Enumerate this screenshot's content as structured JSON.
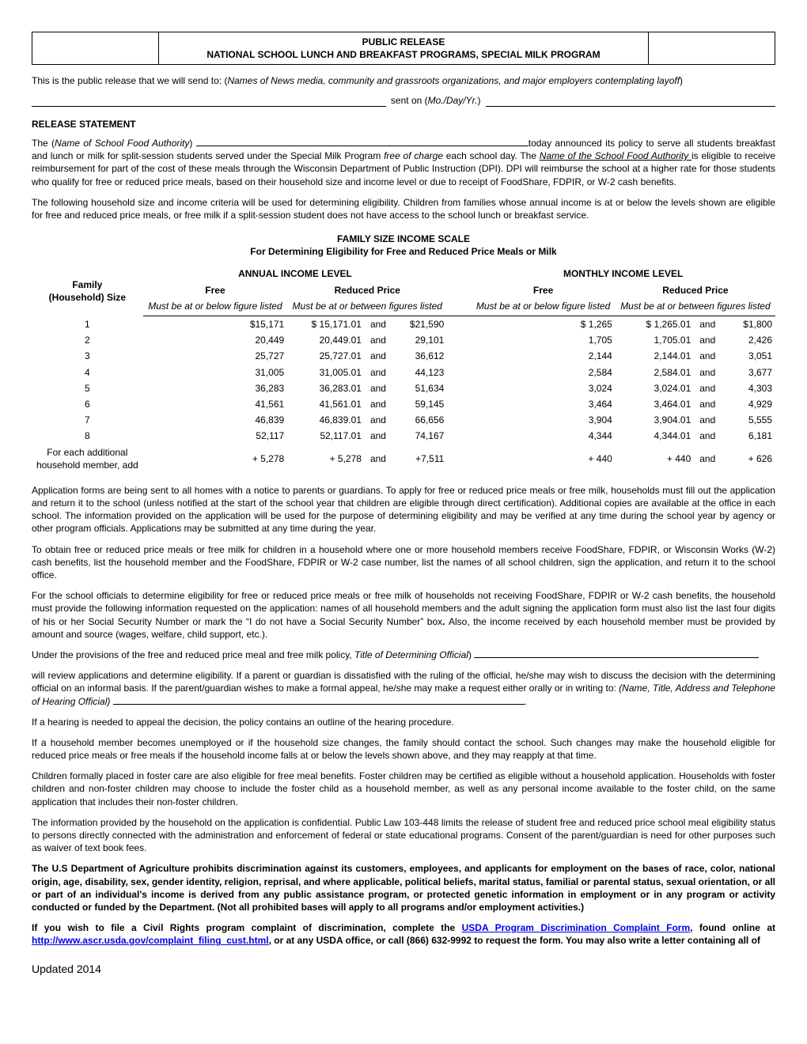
{
  "header": {
    "line1": "PUBLIC RELEASE",
    "line2": "NATIONAL SCHOOL LUNCH AND BREAKFAST PROGRAMS, SPECIAL MILK PROGRAM"
  },
  "intro": {
    "lead": "This is the public release that we will send to: (",
    "italic": "Names of News media, community and grassroots organizations, and major employers contemplating layoff",
    "tail": ")"
  },
  "sent": {
    "label_pre": " sent on (",
    "label_italic": "Mo./Day/Yr.",
    "label_post": ") "
  },
  "release_heading": "RELEASE STATEMENT",
  "para1": {
    "a": "The (",
    "b_italic": "Name of School Food Authority",
    "c": ") ",
    "d": "today announced its policy to serve all students breakfast and lunch or milk for split-session students served under the Special Milk Program ",
    "e_italic": "free of charge",
    "f": " each school day. The ",
    "g_under_italic": "Name of the School Food Authority ",
    "h": "is eligible to receive reimbursement for part of the cost of these meals through the Wisconsin Department of Public Instruction (DPI). DPI will reimburse the school at a higher rate for those students who qualify for free or reduced price meals, based on their household size and income level or due to receipt of FoodShare, FDPIR, or W-2 cash benefits."
  },
  "para2": "The following household size and income criteria will be used for determining eligibility. Children from families whose annual income is at or below the levels shown are eligible for free and reduced price meals, or free milk if a split-session student does not have access to the school lunch or breakfast service.",
  "table": {
    "title": "FAMILY SIZE INCOME SCALE",
    "subtitle": "For Determining Eligibility for Free and Reduced Price Meals or Milk",
    "annual": "ANNUAL INCOME LEVEL",
    "monthly": "MONTHLY INCOME LEVEL",
    "free": "Free",
    "reduced": "Reduced Price",
    "family_h1": "Family",
    "family_h2": "(Household) Size",
    "sub_free": "Must be at or below figure listed",
    "sub_reduced": "Must be at or between figures listed",
    "and": "and",
    "rows": [
      {
        "fs": "1",
        "af": "$15,171",
        "arl": "$ 15,171.01",
        "arr": "$21,590",
        "mf": "$ 1,265",
        "mrl": "$ 1,265.01",
        "mrr": "$1,800",
        "mrr_pre": "and"
      },
      {
        "fs": "2",
        "af": "20,449",
        "arl": "20,449.01",
        "arr": "29,101",
        "mf": "1,705",
        "mrl": "1,705.01",
        "mrr": "2,426",
        "mrr_pre": "and"
      },
      {
        "fs": "3",
        "af": "25,727",
        "arl": "25,727.01",
        "arr": "36,612",
        "mf": "2,144",
        "mrl": "2,144.01",
        "mrr": "3,051",
        "mrr_pre": "and"
      },
      {
        "fs": "4",
        "af": "31,005",
        "arl": "31,005.01",
        "arr": "44,123",
        "mf": "2,584",
        "mrl": "2,584.01",
        "mrr": "3,677",
        "mrr_pre": "and"
      },
      {
        "fs": "5",
        "af": "36,283",
        "arl": "36,283.01",
        "arr": "51,634",
        "mf": "3,024",
        "mrl": "3,024.01",
        "mrr": "4,303",
        "mrr_pre": "and"
      },
      {
        "fs": "6",
        "af": "41,561",
        "arl": "41,561.01",
        "arr": "59,145",
        "mf": "3,464",
        "mrl": "3,464.01",
        "mrr": "4,929",
        "mrr_pre": "and"
      },
      {
        "fs": "7",
        "af": "46,839",
        "arl": "46,839.01",
        "arr": "66,656",
        "mf": "3,904",
        "mrl": "3,904.01",
        "mrr": "5,555",
        "mrr_pre": "and"
      },
      {
        "fs": "8",
        "af": "52,117",
        "arl": "52,117.01",
        "arr": "74,167",
        "mf": "4,344",
        "mrl": "4,344.01",
        "mrr": "6,181",
        "mrr_pre": "and"
      }
    ],
    "addl": {
      "label1": "For each additional",
      "label2": "household member, add",
      "af": "+ 5,278",
      "arl": "+ 5,278",
      "arr": "+7,511",
      "mf": "+ 440",
      "mrl": "+ 440",
      "mrr": "+ 626"
    }
  },
  "para3": "Application forms are being sent to all homes with a notice to parents or guardians. To apply for free or reduced price meals or free milk, households must fill out the application and return it to the school (unless notified at the start of the school year that children are eligible through direct certification). Additional copies are available at the office in each school. The information provided on the application will be used for the purpose of determining eligibility and may be verified at any time during the school year by agency or other program officials. Applications may be submitted at any time during the year.",
  "para4": "To obtain free or reduced price meals or free milk for children in a household where one or more household members receive FoodShare, FDPIR, or Wisconsin Works (W-2) cash benefits, list the household member and the FoodShare, FDPIR or W-2 case number, list the names of all school children, sign  the application, and return it to the school office.",
  "para5": {
    "a": "For the school officials to determine eligibility for free or reduced price meals or free milk of households not receiving FoodShare, FDPIR or W-2 cash benefits, the household must provide the following information requested on the application: names of all household members and the adult signing the application form must also list the last four digits of his or her Social Security Number or mark the “I do not have a Social Security Number” box",
    "b_bold": ". ",
    "c": "Also, the income received by each household member must be provided by amount and source (wages, welfare, child support, etc.)."
  },
  "para6": {
    "a": "Under the provisions of the free and reduced price meal and free milk policy, ",
    "b_italic": "Title of Determining Official",
    "c": ") "
  },
  "para7": {
    "a": "will review applications and determine eligibility. If a parent or guardian is dissatisfied with the ruling of the official, he/she may wish to discuss the decision with the determining official on an informal basis. If the parent/guardian wishes to make a formal appeal, he/she may make a request either orally or in writing to: ",
    "b_italic": "(Name, Title, Address and Telephone of Hearing Official) ",
    "c": "."
  },
  "para8": "If a hearing is needed to appeal the decision, the policy contains an outline of the hearing procedure.",
  "para9": "If a household member becomes unemployed or if the household size changes, the family should contact the school. Such changes may make the house­hold eligible for reduced price meals or free meals if the household income falls at or below the levels shown above, and they may reapply at that time.",
  "para10": "Children formally placed in foster care are also eligible for free meal benefits. Foster children may be certified as eligible without a household application. Households with foster children and non-foster children may choose to include the foster child as a household member, as well as any personal income available to the foster child, on the same application that includes their non-foster children.",
  "para11": "The information provided by the household on the application is confidential. Public Law 103-448 limits the release of student free and reduced price school meal eligibility status to persons directly connected with the administration and enforcement of federal or state educational programs.  Consent of the parent/guardian is need for other purposes such as waiver of text book fees.",
  "para12_bold": "The U.S Department of Agriculture prohibits discrimination against its customers, employees, and applicants for employment on the bases of race, color, national origin, age, disability, sex, gender identity, religion, reprisal, and where applicable, political beliefs, marital status, familial or parental status, sexual orientation, or all or part of an individual's income is derived from any public assistance program, or protected genetic information in employment or in any program or activity conducted or funded by the Department.  (Not all prohibited bases will apply to all programs and/or employment activities.)",
  "para13": {
    "a_bold": "If you wish to file a Civil Rights program complaint of discrimination, complete the   ",
    "link1_text": "USDA Program Discrimination Complaint Form",
    "b_bold": ", found online at ",
    "link2_text": "http://www.ascr.usda.gov/complaint_filing_cust.html",
    "c_bold": ", or at any USDA office, or call (866) 632-9992 to request the form. You may also write a letter containing all of"
  },
  "footer": "Updated 2014"
}
